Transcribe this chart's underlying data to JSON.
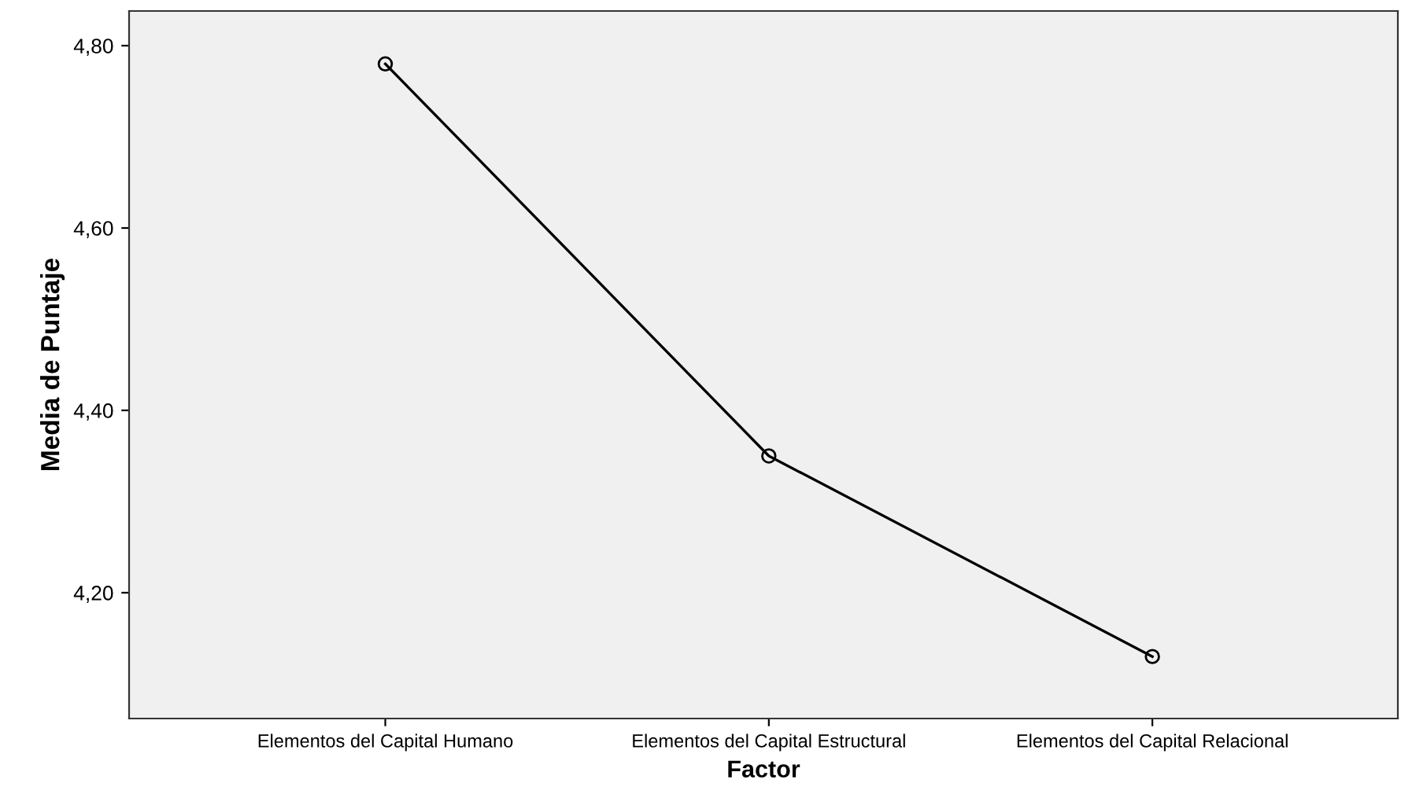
{
  "chart_data": {
    "type": "line",
    "xlabel": "Factor",
    "ylabel": "Media de Puntaje",
    "categories": [
      "Elementos del Capital Humano",
      "Elementos del Capital Estructural",
      "Elementos del Capital Relacional"
    ],
    "series": [
      {
        "color": "#000000",
        "values": [
          4.78,
          4.35,
          4.13
        ]
      }
    ],
    "ylim": [
      4.062,
      4.838
    ],
    "yticks": [
      {
        "value": 4.2,
        "label": "4,20"
      },
      {
        "value": 4.4,
        "label": "4,40"
      },
      {
        "value": 4.6,
        "label": "4,60"
      },
      {
        "value": 4.8,
        "label": "4,80"
      }
    ],
    "marker": "circle",
    "line_style": "solid",
    "grid": false,
    "legend": false
  }
}
